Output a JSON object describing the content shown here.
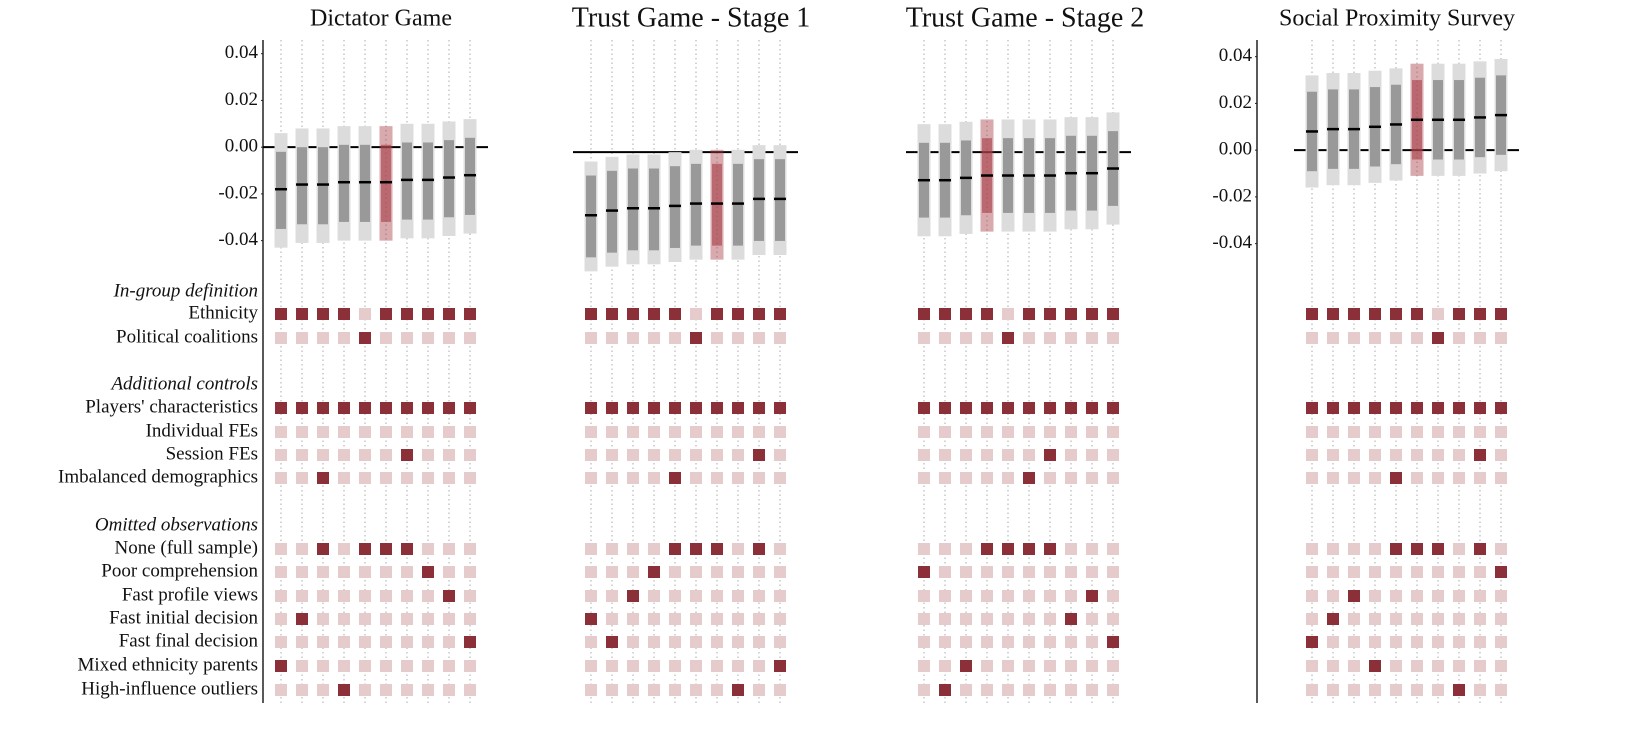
{
  "chart_data": {
    "type": "specification",
    "colors": {
      "selected": "#8b3038",
      "unselected": "#e6cbcd",
      "ci95": "#999999",
      "ci99": "#dcdcdc",
      "highlight": "#a8404a",
      "estimate": "#000000"
    },
    "groups": [
      {
        "title": "In-group definition",
        "rows": [
          "Ethnicity",
          "Political coalitions"
        ]
      },
      {
        "title": "Additional controls",
        "rows": [
          "Players' characteristics",
          "Individual FEs",
          "Session FEs",
          "Imbalanced demographics"
        ]
      },
      {
        "title": "Omitted observations",
        "rows": [
          "None (full sample)",
          "Poor comprehension",
          "Fast profile views",
          "Fast initial decision",
          "Fast final decision",
          "Mixed ethnicity parents",
          "High-influence outliers"
        ]
      }
    ],
    "panels": [
      {
        "title": "Dictator Game",
        "highlight": 5,
        "ylim": [
          -0.05,
          0.045
        ],
        "yticks": [
          0.04,
          0.02,
          {
            "value": 0,
            "label": "0.00"
          },
          -0.02,
          -0.04
        ],
        "estimates": [
          -0.018,
          -0.016,
          -0.016,
          -0.015,
          -0.015,
          -0.015,
          -0.014,
          -0.014,
          -0.013,
          -0.012
        ],
        "ci95_low": [
          -0.035,
          -0.033,
          -0.033,
          -0.032,
          -0.032,
          -0.032,
          -0.031,
          -0.031,
          -0.03,
          -0.029
        ],
        "ci95_high": [
          -0.002,
          0.0,
          0.0,
          0.001,
          0.001,
          0.001,
          0.002,
          0.002,
          0.003,
          0.004
        ],
        "ci99_low": [
          -0.043,
          -0.041,
          -0.041,
          -0.04,
          -0.04,
          -0.04,
          -0.039,
          -0.039,
          -0.038,
          -0.037
        ],
        "ci99_high": [
          0.006,
          0.008,
          0.008,
          0.009,
          0.009,
          0.009,
          0.01,
          0.01,
          0.011,
          0.012
        ],
        "indicators": [
          [
            1,
            1,
            1,
            1,
            0,
            1,
            1,
            1,
            1,
            1
          ],
          [
            0,
            0,
            0,
            0,
            1,
            0,
            0,
            0,
            0,
            0
          ],
          [
            1,
            1,
            1,
            1,
            1,
            1,
            1,
            1,
            1,
            1
          ],
          [
            0,
            0,
            0,
            0,
            0,
            0,
            0,
            0,
            0,
            0
          ],
          [
            0,
            0,
            0,
            0,
            0,
            0,
            1,
            0,
            0,
            0
          ],
          [
            0,
            0,
            1,
            0,
            0,
            0,
            0,
            0,
            0,
            0
          ],
          [
            0,
            0,
            1,
            0,
            1,
            1,
            1,
            0,
            0,
            0
          ],
          [
            0,
            0,
            0,
            0,
            0,
            0,
            0,
            1,
            0,
            0
          ],
          [
            0,
            0,
            0,
            0,
            0,
            0,
            0,
            0,
            1,
            0
          ],
          [
            0,
            1,
            0,
            0,
            0,
            0,
            0,
            0,
            0,
            0
          ],
          [
            0,
            0,
            0,
            0,
            0,
            0,
            0,
            0,
            0,
            1
          ],
          [
            1,
            0,
            0,
            0,
            0,
            0,
            0,
            0,
            0,
            0
          ],
          [
            0,
            0,
            0,
            1,
            0,
            0,
            0,
            0,
            0,
            0
          ]
        ]
      },
      {
        "title": "Trust Game - Stage 1",
        "highlight": 6,
        "ylim": [
          -0.05,
          0.045
        ],
        "estimates": [
          -0.027,
          -0.025,
          -0.024,
          -0.024,
          -0.023,
          -0.022,
          -0.022,
          -0.022,
          -0.02,
          -0.02
        ],
        "ci95_low": [
          -0.045,
          -0.043,
          -0.042,
          -0.042,
          -0.041,
          -0.04,
          -0.04,
          -0.04,
          -0.038,
          -0.038
        ],
        "ci95_high": [
          -0.01,
          -0.008,
          -0.007,
          -0.007,
          -0.006,
          -0.005,
          -0.005,
          -0.005,
          -0.003,
          -0.003
        ],
        "ci99_low": [
          -0.051,
          -0.049,
          -0.048,
          -0.048,
          -0.047,
          -0.046,
          -0.046,
          -0.046,
          -0.044,
          -0.044
        ],
        "ci99_high": [
          -0.004,
          -0.002,
          -0.001,
          -0.001,
          0.0,
          0.001,
          0.001,
          0.001,
          0.003,
          0.003
        ],
        "indicators": [
          [
            1,
            1,
            1,
            1,
            1,
            0,
            1,
            1,
            1,
            1
          ],
          [
            0,
            0,
            0,
            0,
            0,
            1,
            0,
            0,
            0,
            0
          ],
          [
            1,
            1,
            1,
            1,
            1,
            1,
            1,
            1,
            1,
            1
          ],
          [
            0,
            0,
            0,
            0,
            0,
            0,
            0,
            0,
            0,
            0
          ],
          [
            0,
            0,
            0,
            0,
            0,
            0,
            0,
            0,
            1,
            0
          ],
          [
            0,
            0,
            0,
            0,
            1,
            0,
            0,
            0,
            0,
            0
          ],
          [
            0,
            0,
            0,
            0,
            1,
            1,
            1,
            0,
            1,
            0
          ],
          [
            0,
            0,
            0,
            1,
            0,
            0,
            0,
            0,
            0,
            0
          ],
          [
            0,
            0,
            1,
            0,
            0,
            0,
            0,
            0,
            0,
            0
          ],
          [
            1,
            0,
            0,
            0,
            0,
            0,
            0,
            0,
            0,
            0
          ],
          [
            0,
            1,
            0,
            0,
            0,
            0,
            0,
            0,
            0,
            0
          ],
          [
            0,
            0,
            0,
            0,
            0,
            0,
            0,
            0,
            0,
            1
          ],
          [
            0,
            0,
            0,
            0,
            0,
            0,
            0,
            1,
            0,
            0
          ]
        ]
      },
      {
        "title": "Trust Game - Stage 2",
        "highlight": 3,
        "ylim": [
          -0.05,
          0.045
        ],
        "estimates": [
          -0.012,
          -0.012,
          -0.011,
          -0.01,
          -0.01,
          -0.01,
          -0.01,
          -0.009,
          -0.009,
          -0.007
        ],
        "ci95_low": [
          -0.028,
          -0.028,
          -0.027,
          -0.026,
          -0.026,
          -0.026,
          -0.026,
          -0.025,
          -0.025,
          -0.023
        ],
        "ci95_high": [
          0.004,
          0.004,
          0.005,
          0.006,
          0.006,
          0.006,
          0.006,
          0.007,
          0.007,
          0.009
        ],
        "ci99_low": [
          -0.036,
          -0.036,
          -0.035,
          -0.034,
          -0.034,
          -0.034,
          -0.034,
          -0.033,
          -0.033,
          -0.031
        ],
        "ci99_high": [
          0.012,
          0.012,
          0.013,
          0.014,
          0.014,
          0.014,
          0.014,
          0.015,
          0.015,
          0.017
        ],
        "indicators": [
          [
            1,
            1,
            1,
            1,
            0,
            1,
            1,
            1,
            1,
            1
          ],
          [
            0,
            0,
            0,
            0,
            1,
            0,
            0,
            0,
            0,
            0
          ],
          [
            1,
            1,
            1,
            1,
            1,
            1,
            1,
            1,
            1,
            1
          ],
          [
            0,
            0,
            0,
            0,
            0,
            0,
            0,
            0,
            0,
            0
          ],
          [
            0,
            0,
            0,
            0,
            0,
            0,
            1,
            0,
            0,
            0
          ],
          [
            0,
            0,
            0,
            0,
            0,
            1,
            0,
            0,
            0,
            0
          ],
          [
            0,
            0,
            0,
            1,
            1,
            1,
            1,
            0,
            0,
            0
          ],
          [
            1,
            0,
            0,
            0,
            0,
            0,
            0,
            0,
            0,
            0
          ],
          [
            0,
            0,
            0,
            0,
            0,
            0,
            0,
            0,
            1,
            0
          ],
          [
            0,
            0,
            0,
            0,
            0,
            0,
            0,
            1,
            0,
            0
          ],
          [
            0,
            0,
            0,
            0,
            0,
            0,
            0,
            0,
            0,
            1
          ],
          [
            0,
            0,
            1,
            0,
            0,
            0,
            0,
            0,
            0,
            0
          ],
          [
            0,
            1,
            0,
            0,
            0,
            0,
            0,
            0,
            0,
            0
          ]
        ]
      },
      {
        "title": "Social Proximity Survey",
        "highlight": 5,
        "ylim": [
          -0.05,
          0.045
        ],
        "yticks": [
          0.04,
          0.02,
          {
            "value": 0,
            "label": "0.00"
          },
          -0.02,
          -0.04
        ],
        "estimates": [
          0.008,
          0.009,
          0.009,
          0.01,
          0.011,
          0.013,
          0.013,
          0.013,
          0.014,
          0.015
        ],
        "ci95_low": [
          -0.009,
          -0.008,
          -0.008,
          -0.007,
          -0.006,
          -0.004,
          -0.004,
          -0.004,
          -0.003,
          -0.002
        ],
        "ci95_high": [
          0.025,
          0.026,
          0.026,
          0.027,
          0.028,
          0.03,
          0.03,
          0.03,
          0.031,
          0.032
        ],
        "ci99_low": [
          -0.016,
          -0.015,
          -0.015,
          -0.014,
          -0.013,
          -0.011,
          -0.011,
          -0.011,
          -0.01,
          -0.009
        ],
        "ci99_high": [
          0.032,
          0.033,
          0.033,
          0.034,
          0.035,
          0.037,
          0.037,
          0.037,
          0.038,
          0.039
        ],
        "indicators": [
          [
            1,
            1,
            1,
            1,
            1,
            1,
            0,
            1,
            1,
            1
          ],
          [
            0,
            0,
            0,
            0,
            0,
            0,
            1,
            0,
            0,
            0
          ],
          [
            1,
            1,
            1,
            1,
            1,
            1,
            1,
            1,
            1,
            1
          ],
          [
            0,
            0,
            0,
            0,
            0,
            0,
            0,
            0,
            0,
            0
          ],
          [
            0,
            0,
            0,
            0,
            0,
            0,
            0,
            0,
            1,
            0
          ],
          [
            0,
            0,
            0,
            0,
            1,
            0,
            0,
            0,
            0,
            0
          ],
          [
            0,
            0,
            0,
            0,
            1,
            1,
            1,
            0,
            1,
            0
          ],
          [
            0,
            0,
            0,
            0,
            0,
            0,
            0,
            0,
            0,
            1
          ],
          [
            0,
            0,
            1,
            0,
            0,
            0,
            0,
            0,
            0,
            0
          ],
          [
            0,
            1,
            0,
            0,
            0,
            0,
            0,
            0,
            0,
            0
          ],
          [
            1,
            0,
            0,
            0,
            0,
            0,
            0,
            0,
            0,
            0
          ],
          [
            0,
            0,
            0,
            1,
            0,
            0,
            0,
            0,
            0,
            0
          ],
          [
            0,
            0,
            0,
            0,
            0,
            0,
            0,
            1,
            0,
            0
          ]
        ]
      }
    ]
  }
}
